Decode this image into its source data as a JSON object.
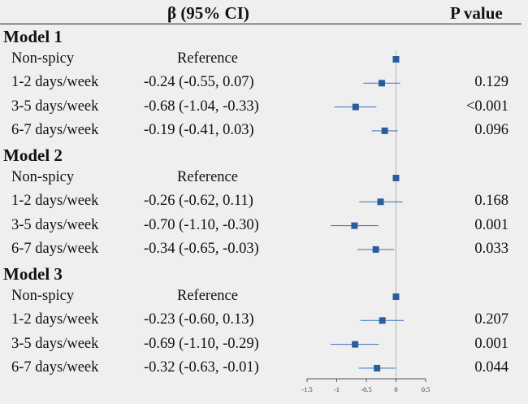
{
  "header": {
    "estimate_label": "β (95% CI)",
    "pvalue_label": "P value"
  },
  "chart_data": {
    "type": "forest",
    "title": "",
    "xlabel": "",
    "ylabel": "",
    "xlim": [
      -1.5,
      0.5
    ],
    "xticks": [
      -1.5,
      -1.0,
      -0.5,
      0.0,
      0.5
    ],
    "xtick_labels": [
      "-1.5",
      "-1",
      "-0.5",
      "0",
      "0.5"
    ],
    "reference_line": 0,
    "marker_color": "#2a5d9e",
    "line_color": "#4a7fc0",
    "models": [
      {
        "title": "Model 1",
        "rows": [
          {
            "label": "Non-spicy",
            "estimate_text": "Reference",
            "beta": 0,
            "lower": 0,
            "upper": 0,
            "p": "",
            "reference": true
          },
          {
            "label": "1-2 days/week",
            "estimate_text": "-0.24 (-0.55, 0.07)",
            "beta": -0.24,
            "lower": -0.55,
            "upper": 0.07,
            "p": "0.129",
            "reference": false
          },
          {
            "label": "3-5 days/week",
            "estimate_text": "-0.68 (-1.04, -0.33)",
            "beta": -0.68,
            "lower": -1.04,
            "upper": -0.33,
            "p": "<0.001",
            "reference": false
          },
          {
            "label": "6-7 days/week",
            "estimate_text": "-0.19 (-0.41, 0.03)",
            "beta": -0.19,
            "lower": -0.41,
            "upper": 0.03,
            "p": "0.096",
            "reference": false
          }
        ]
      },
      {
        "title": "Model 2",
        "rows": [
          {
            "label": "Non-spicy",
            "estimate_text": "Reference",
            "beta": 0,
            "lower": 0,
            "upper": 0,
            "p": "",
            "reference": true
          },
          {
            "label": "1-2 days/week",
            "estimate_text": "-0.26 (-0.62, 0.11)",
            "beta": -0.26,
            "lower": -0.62,
            "upper": 0.11,
            "p": "0.168",
            "reference": false
          },
          {
            "label": "3-5 days/week",
            "estimate_text": "-0.70 (-1.10, -0.30)",
            "beta": -0.7,
            "lower": -1.1,
            "upper": -0.3,
            "p": "0.001",
            "reference": false
          },
          {
            "label": "6-7 days/week",
            "estimate_text": "-0.34 (-0.65, -0.03)",
            "beta": -0.34,
            "lower": -0.65,
            "upper": -0.03,
            "p": "0.033",
            "reference": false
          }
        ]
      },
      {
        "title": "Model 3",
        "rows": [
          {
            "label": "Non-spicy",
            "estimate_text": "Reference",
            "beta": 0,
            "lower": 0,
            "upper": 0,
            "p": "",
            "reference": true
          },
          {
            "label": "1-2 days/week",
            "estimate_text": "-0.23 (-0.60, 0.13)",
            "beta": -0.23,
            "lower": -0.6,
            "upper": 0.13,
            "p": "0.207",
            "reference": false
          },
          {
            "label": "3-5 days/week",
            "estimate_text": "-0.69 (-1.10, -0.29)",
            "beta": -0.69,
            "lower": -1.1,
            "upper": -0.29,
            "p": "0.001",
            "reference": false
          },
          {
            "label": "6-7 days/week",
            "estimate_text": "-0.32 (-0.63, -0.01)",
            "beta": -0.32,
            "lower": -0.63,
            "upper": -0.01,
            "p": "0.044",
            "reference": false
          }
        ]
      }
    ]
  }
}
